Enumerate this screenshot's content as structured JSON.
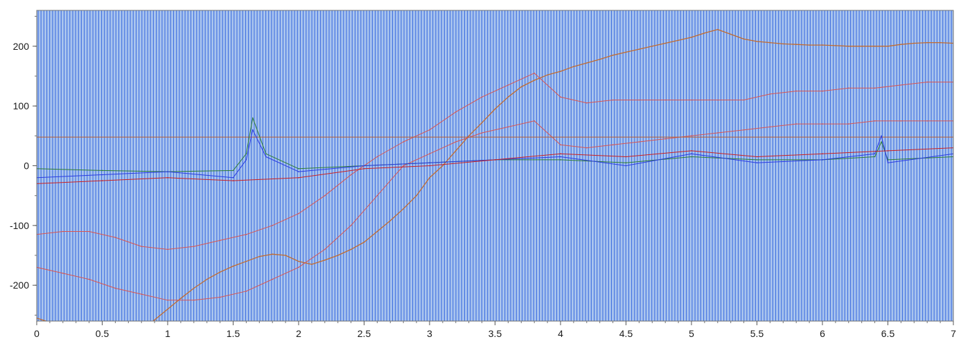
{
  "chart_data": {
    "type": "line",
    "title": "",
    "xlabel": "",
    "ylabel": "",
    "xlim": [
      0,
      7
    ],
    "ylim": [
      -260,
      260
    ],
    "x_ticks": [
      0,
      0.5,
      1,
      1.5,
      2,
      2.5,
      3,
      3.5,
      4,
      4.5,
      5,
      5.5,
      6,
      6.5,
      7
    ],
    "x_tick_labels": [
      "0",
      "0.5",
      "1",
      "1.5",
      "2",
      "2.5",
      "3",
      "3.5",
      "4",
      "4.5",
      "5",
      "5.5",
      "6",
      "6.5",
      "7"
    ],
    "y_ticks": [
      200,
      100,
      0,
      -100,
      -200
    ],
    "y_tick_labels": [
      "200",
      "100",
      "0",
      "-100",
      "-200"
    ],
    "grid": false,
    "legend": "none",
    "background_color": "#a9c4ee",
    "stripe_color": "#3f6fe0",
    "stripe_spacing_x": 0.022,
    "series": [
      {
        "role": "trend",
        "color": "#c26a2d",
        "width": 1.3,
        "x": [
          0,
          0.1,
          0.2,
          0.3,
          0.4,
          0.5,
          0.6,
          0.7,
          0.8,
          0.9,
          1.0,
          1.1,
          1.2,
          1.3,
          1.4,
          1.5,
          1.6,
          1.7,
          1.8,
          1.9,
          2.0,
          2.1,
          2.2,
          2.3,
          2.4,
          2.5,
          2.6,
          2.7,
          2.8,
          2.9,
          3.0,
          3.1,
          3.2,
          3.3,
          3.4,
          3.5,
          3.6,
          3.7,
          3.8,
          3.9,
          4.0,
          4.1,
          4.2,
          4.3,
          4.4,
          4.5,
          4.6,
          4.7,
          4.8,
          4.9,
          5.0,
          5.1,
          5.2,
          5.3,
          5.4,
          5.5,
          5.6,
          5.7,
          5.8,
          5.9,
          6.0,
          6.1,
          6.2,
          6.3,
          6.4,
          6.5,
          6.6,
          6.7,
          6.8,
          6.9,
          7.0
        ],
        "y": [
          -255,
          -262,
          -270,
          -280,
          -290,
          -300,
          -305,
          -292,
          -275,
          -258,
          -240,
          -222,
          -205,
          -190,
          -178,
          -168,
          -160,
          -152,
          -148,
          -150,
          -160,
          -165,
          -158,
          -150,
          -140,
          -128,
          -110,
          -92,
          -72,
          -50,
          -20,
          0,
          25,
          50,
          72,
          95,
          115,
          132,
          143,
          152,
          158,
          166,
          172,
          178,
          185,
          190,
          195,
          200,
          205,
          210,
          215,
          222,
          228,
          220,
          212,
          208,
          206,
          204,
          203,
          202,
          202,
          201,
          200,
          200,
          200,
          200,
          203,
          205,
          206,
          206,
          205
        ]
      },
      {
        "role": "envelope-upper",
        "color": "#d9534f",
        "width": 1,
        "x": [
          0,
          0.2,
          0.4,
          0.6,
          0.8,
          1.0,
          1.2,
          1.4,
          1.6,
          1.8,
          2.0,
          2.2,
          2.4,
          2.6,
          2.8,
          3.0,
          3.2,
          3.4,
          3.6,
          3.8,
          4.0,
          4.2,
          4.4,
          4.6,
          4.8,
          5.0,
          5.2,
          5.4,
          5.6,
          5.8,
          6.0,
          6.2,
          6.4,
          6.6,
          6.8,
          7.0
        ],
        "y": [
          -115,
          -110,
          -110,
          -120,
          -135,
          -140,
          -135,
          -125,
          -115,
          -100,
          -80,
          -50,
          -15,
          15,
          40,
          60,
          90,
          115,
          135,
          155,
          115,
          105,
          110,
          110,
          110,
          110,
          110,
          110,
          120,
          125,
          125,
          130,
          130,
          135,
          140,
          140
        ]
      },
      {
        "role": "envelope-lower",
        "color": "#d9534f",
        "width": 1,
        "x": [
          0,
          0.2,
          0.4,
          0.6,
          0.8,
          1.0,
          1.2,
          1.4,
          1.6,
          1.8,
          2.0,
          2.2,
          2.4,
          2.6,
          2.8,
          3.0,
          3.2,
          3.4,
          3.6,
          3.8,
          4.0,
          4.2,
          4.4,
          4.6,
          4.8,
          5.0,
          5.2,
          5.4,
          5.6,
          5.8,
          6.0,
          6.2,
          6.4,
          6.6,
          6.8,
          7.0
        ],
        "y": [
          -170,
          -180,
          -190,
          -205,
          -215,
          -225,
          -225,
          -220,
          -210,
          -190,
          -170,
          -140,
          -100,
          -50,
          0,
          20,
          40,
          55,
          65,
          75,
          35,
          30,
          35,
          40,
          45,
          50,
          55,
          60,
          65,
          70,
          70,
          70,
          75,
          75,
          75,
          75
        ]
      },
      {
        "role": "reference",
        "color": "#b85c2f",
        "width": 1,
        "x": [
          0,
          7
        ],
        "y": [
          48,
          48
        ]
      },
      {
        "role": "noise-band",
        "color": "#2e7d32",
        "width": 1,
        "x": [
          0,
          0.5,
          1.0,
          1.5,
          1.6,
          1.65,
          1.75,
          2.0,
          2.5,
          3.0,
          3.5,
          4.0,
          4.5,
          5.0,
          5.5,
          6.0,
          6.4,
          6.45,
          6.5,
          7.0
        ],
        "y": [
          -5,
          -8,
          -10,
          -8,
          20,
          80,
          20,
          -5,
          0,
          5,
          10,
          10,
          5,
          15,
          10,
          10,
          15,
          40,
          10,
          15
        ]
      },
      {
        "role": "noise-band",
        "color": "#2a3ae0",
        "width": 1,
        "x": [
          0,
          0.5,
          1.0,
          1.5,
          1.6,
          1.65,
          1.75,
          2.0,
          2.5,
          3.0,
          3.5,
          4.0,
          4.5,
          5.0,
          5.5,
          6.0,
          6.4,
          6.45,
          6.5,
          7.0
        ],
        "y": [
          -20,
          -15,
          -10,
          -20,
          10,
          60,
          15,
          -10,
          0,
          5,
          10,
          15,
          0,
          20,
          5,
          10,
          20,
          50,
          5,
          20
        ]
      },
      {
        "role": "noise-band",
        "color": "#cc1f1f",
        "width": 1,
        "x": [
          0,
          0.5,
          1.0,
          1.5,
          2.0,
          2.5,
          3.0,
          3.5,
          4.0,
          4.5,
          5.0,
          5.5,
          6.0,
          6.5,
          7.0
        ],
        "y": [
          -30,
          -25,
          -20,
          -25,
          -20,
          -5,
          0,
          10,
          20,
          15,
          25,
          15,
          20,
          25,
          30
        ]
      }
    ]
  }
}
